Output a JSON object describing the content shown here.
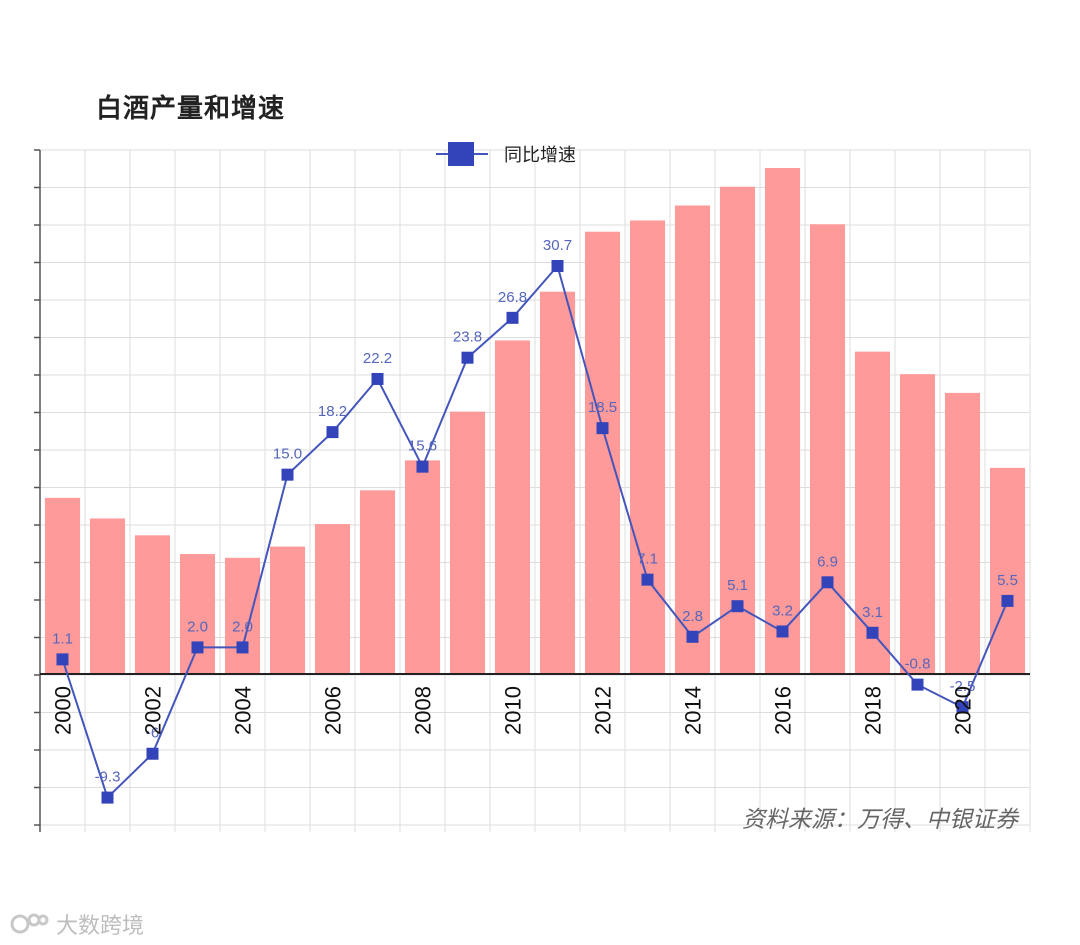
{
  "chart_data": {
    "type": "bar",
    "title": "白酒产量和增速",
    "source": "资料来源：万得、中银证券",
    "x": [
      2000,
      2001,
      2002,
      2003,
      2004,
      2005,
      2006,
      2007,
      2008,
      2009,
      2010,
      2011,
      2012,
      2013,
      2014,
      2015,
      2016,
      2017,
      2018,
      2019,
      2020,
      2021
    ],
    "tick_labels": [
      "2000",
      "2002",
      "2004",
      "2006",
      "2008",
      "2010",
      "2012",
      "2014",
      "2016",
      "2018",
      "2020"
    ],
    "tick_years": [
      2000,
      2002,
      2004,
      2006,
      2008,
      2010,
      2012,
      2014,
      2016,
      2018,
      2020
    ],
    "series": [
      {
        "kind": "bar",
        "values": [
          47,
          41.5,
          37,
          32,
          31,
          34,
          40,
          49,
          57,
          70,
          89,
          102,
          118,
          121,
          125,
          130,
          135,
          120,
          86,
          80,
          75,
          55
        ],
        "color": "#ff9a9a"
      },
      {
        "name": "同比增速",
        "kind": "line",
        "values": [
          1.1,
          -9.3,
          -6.0,
          2.0,
          2.0,
          15.0,
          18.2,
          22.2,
          15.6,
          23.8,
          26.8,
          30.7,
          18.5,
          7.1,
          2.8,
          5.1,
          3.2,
          6.9,
          3.1,
          -0.8,
          -2.5,
          5.5
        ],
        "labels": [
          "1.1",
          "-9.3",
          "-6",
          "2.0",
          "2.0",
          "15.0",
          "18.2",
          "22.2",
          "15.6",
          "23.8",
          "26.8",
          "30.7",
          "18.5",
          "7.1",
          "2.8",
          "5.1",
          "3.2",
          "6.9",
          "3.1",
          "-0.8",
          "-2.5",
          "5.5"
        ],
        "color": "#4455bb"
      }
    ],
    "legend": {
      "position": "top-center",
      "label": "同比增速"
    },
    "grid": true
  },
  "watermark": "大数跨境"
}
